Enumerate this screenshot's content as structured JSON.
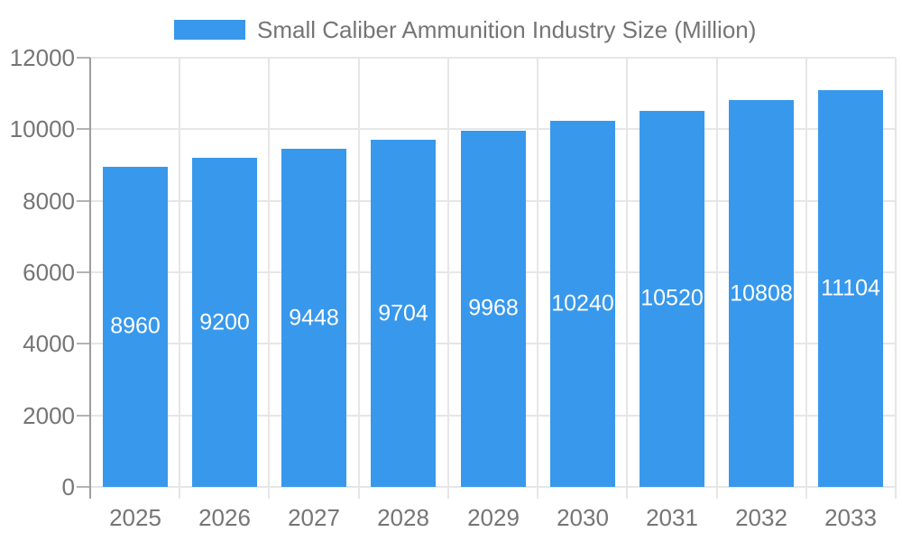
{
  "legend": {
    "label": "Small Caliber Ammunition Industry Size (Million)"
  },
  "colors": {
    "bar": "#3898EC",
    "axis_text": "#757575",
    "grid": "#E6E6E6",
    "axis_line": "#9E9E9E",
    "tick": "#B3B3B3",
    "value_label": "#FFFFFF",
    "background": "#FFFFFF"
  },
  "chart_data": {
    "type": "bar",
    "title": "Small Caliber Ammunition Industry Size (Million)",
    "series_name": "Small Caliber Ammunition Industry Size (Million)",
    "categories": [
      "2025",
      "2026",
      "2027",
      "2028",
      "2029",
      "2030",
      "2031",
      "2032",
      "2033"
    ],
    "values": [
      8960,
      9200,
      9448,
      9704,
      9968,
      10240,
      10520,
      10808,
      11104
    ],
    "xlabel": "",
    "ylabel": "",
    "ylim": [
      0,
      12000
    ],
    "yticks": [
      0,
      2000,
      4000,
      6000,
      8000,
      10000,
      12000
    ],
    "grid": true,
    "legend_position": "top",
    "value_label_position": "inside-center"
  }
}
